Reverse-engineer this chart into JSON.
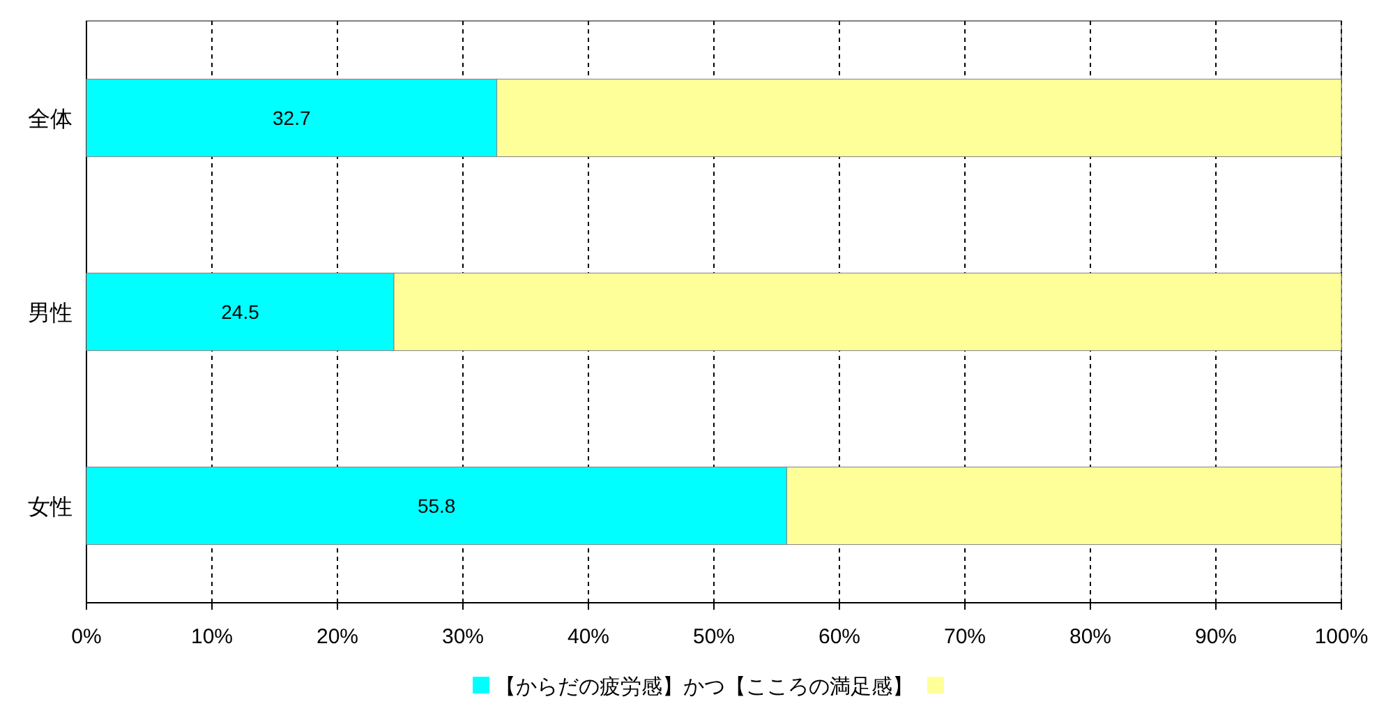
{
  "chart_data": {
    "type": "bar",
    "orientation": "horizontal",
    "stacked": true,
    "categories": [
      "全体",
      "男性",
      "女性"
    ],
    "series": [
      {
        "name": "【からだの疲労感】かつ【こころの満足感】",
        "color": "#00ffff",
        "values": [
          32.7,
          24.5,
          55.8
        ],
        "value_labels": [
          "32.7",
          "24.5",
          "55.8"
        ]
      },
      {
        "color": "#ffff99",
        "values": [
          67.3,
          75.5,
          44.2
        ]
      }
    ],
    "xlim": [
      0,
      100
    ],
    "xticks": [
      {
        "value": 0,
        "label": "0%"
      },
      {
        "value": 10,
        "label": "10%"
      },
      {
        "value": 20,
        "label": "20%"
      },
      {
        "value": 30,
        "label": "30%"
      },
      {
        "value": 40,
        "label": "40%"
      },
      {
        "value": 50,
        "label": "50%"
      },
      {
        "value": 60,
        "label": "60%"
      },
      {
        "value": 70,
        "label": "70%"
      },
      {
        "value": 80,
        "label": "80%"
      },
      {
        "value": 90,
        "label": "90%"
      },
      {
        "value": 100,
        "label": "100%"
      }
    ],
    "grid": "x",
    "legend": "bottom"
  }
}
